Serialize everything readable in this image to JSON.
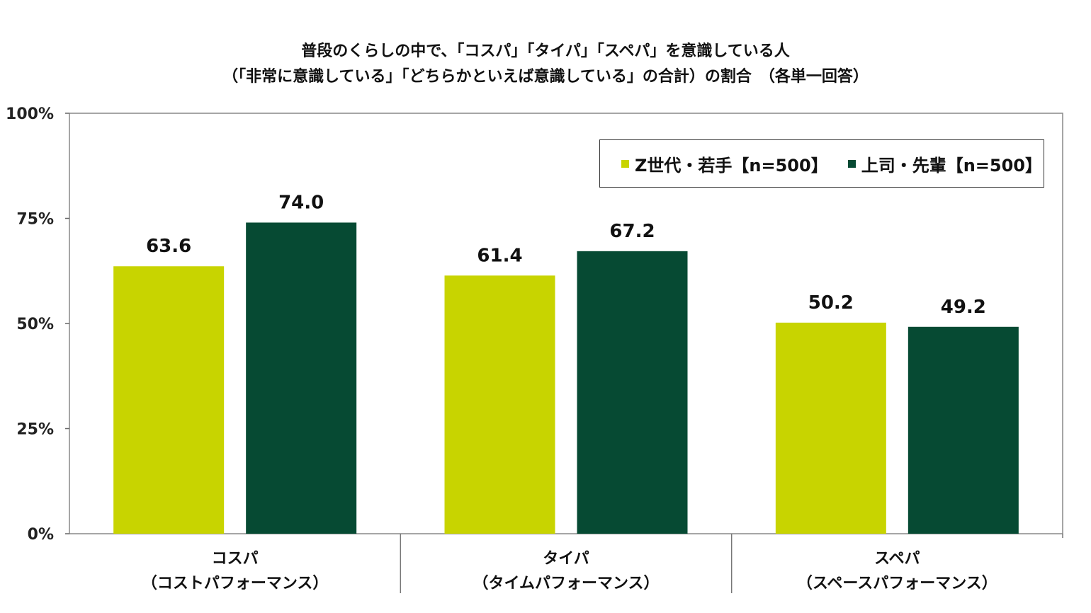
{
  "chart_data": {
    "type": "bar",
    "title": "普段のくらしの中で、「コスパ」「タイパ」「スペパ」を意識している人",
    "subtitle": "（「非常に意識している」「どちらかといえば意識している」の合計）の割合　（各単一回答）",
    "categories": [
      {
        "line1": "コスパ",
        "line2": "（コストパフォーマンス）"
      },
      {
        "line1": "タイパ",
        "line2": "（タイムパフォーマンス）"
      },
      {
        "line1": "スペパ",
        "line2": "（スペースパフォーマンス）"
      }
    ],
    "series": [
      {
        "name": "Z世代・若手【n=500】",
        "color": "#c8d400",
        "values": [
          63.6,
          61.4,
          50.2
        ],
        "labels": [
          "63.6",
          "61.4",
          "50.2"
        ]
      },
      {
        "name": "上司・先輩【n=500】",
        "color": "#064a33",
        "values": [
          74.0,
          67.2,
          49.2
        ],
        "labels": [
          "74.0",
          "67.2",
          "49.2"
        ]
      }
    ],
    "ylim": [
      0,
      100
    ],
    "yticks": [
      "0%",
      "25%",
      "50%",
      "75%",
      "100%"
    ],
    "legend_position": "top-right",
    "grid": false
  }
}
